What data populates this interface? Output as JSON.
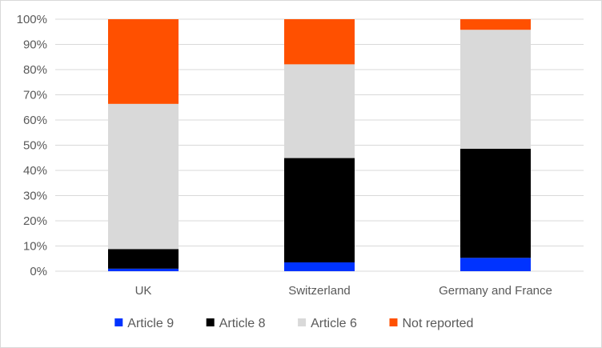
{
  "chart_data": {
    "type": "bar",
    "stacked": true,
    "categories": [
      "UK",
      "Switzerland",
      "Germany and France"
    ],
    "series": [
      {
        "name": "Article 9",
        "color": "#0033ff",
        "values": [
          1,
          3.5,
          5.3
        ]
      },
      {
        "name": "Article 8",
        "color": "#000000",
        "values": [
          7.8,
          41.4,
          43.3
        ]
      },
      {
        "name": "Article 6",
        "color": "#d9d9d9",
        "values": [
          57.6,
          37.2,
          47.2
        ]
      },
      {
        "name": "Not reported",
        "color": "#ff5000",
        "values": [
          33.6,
          17.9,
          4.2
        ]
      }
    ],
    "ylim": [
      0,
      100
    ],
    "yticks": [
      "0%",
      "10%",
      "20%",
      "30%",
      "40%",
      "50%",
      "60%",
      "70%",
      "80%",
      "90%",
      "100%"
    ],
    "grid": true,
    "legend_position": "bottom"
  }
}
